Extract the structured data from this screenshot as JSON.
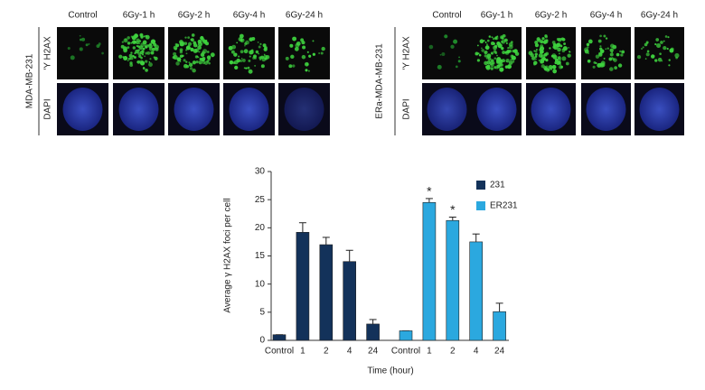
{
  "panels": [
    {
      "title": "MDA-MB-231",
      "columns": [
        "Control",
        "6Gy-1 h",
        "6Gy-2 h",
        "6Gy-4 h",
        "6Gy-24 h"
      ],
      "rows": [
        "'Y H2AX",
        "DAPI"
      ]
    },
    {
      "title": "ERa-MDA-MB-231",
      "columns": [
        "Control",
        "6Gy-1 h",
        "6Gy-2 h",
        "6Gy-4 h",
        "6Gy-24 h"
      ],
      "rows": [
        "'Y H2AX",
        "DAPI"
      ]
    }
  ],
  "chart_data": {
    "type": "bar",
    "ylabel": "Average γ H2AX foci per cell",
    "xlabel": "Time (hour)",
    "categories": [
      "Control",
      "1",
      "2",
      "4",
      "24"
    ],
    "series": [
      {
        "name": "231",
        "color": "#13325a",
        "values": [
          1,
          19.2,
          17,
          14,
          2.9
        ],
        "errors": [
          0,
          1.7,
          1.3,
          2,
          0.8
        ],
        "significance": [
          null,
          null,
          null,
          null,
          null
        ]
      },
      {
        "name": "ER231",
        "color": "#2ba8df",
        "values": [
          1.7,
          24.5,
          21.3,
          17.5,
          5.1
        ],
        "errors": [
          0,
          0.7,
          0.6,
          1.4,
          1.5
        ],
        "significance": [
          null,
          "*",
          "*",
          null,
          null
        ]
      }
    ],
    "ylim": [
      0,
      30
    ],
    "yticks": [
      0,
      5,
      10,
      15,
      20,
      25,
      30
    ],
    "legend": "upper right"
  }
}
